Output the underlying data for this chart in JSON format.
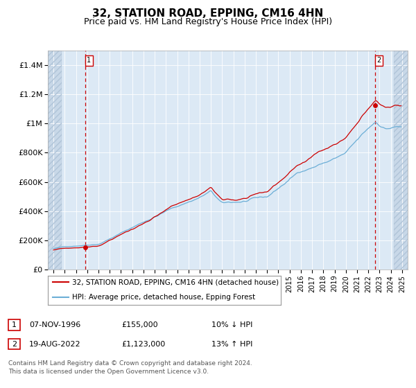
{
  "title": "32, STATION ROAD, EPPING, CM16 4HN",
  "subtitle": "Price paid vs. HM Land Registry's House Price Index (HPI)",
  "ylim": [
    0,
    1500000
  ],
  "yticks": [
    0,
    200000,
    400000,
    600000,
    800000,
    1000000,
    1200000,
    1400000
  ],
  "ytick_labels": [
    "£0",
    "£200K",
    "£400K",
    "£600K",
    "£800K",
    "£1M",
    "£1.2M",
    "£1.4M"
  ],
  "xlim_start": 1993.5,
  "xlim_end": 2025.5,
  "hatch_left_end": 1994.75,
  "hatch_right_start": 2024.25,
  "sale1_date": 1996.85,
  "sale1_price": 155000,
  "sale2_date": 2022.63,
  "sale2_price": 1123000,
  "legend_line1": "32, STATION ROAD, EPPING, CM16 4HN (detached house)",
  "legend_line2": "HPI: Average price, detached house, Epping Forest",
  "table_row1_date": "07-NOV-1996",
  "table_row1_price": "£155,000",
  "table_row1_hpi": "10% ↓ HPI",
  "table_row2_date": "19-AUG-2022",
  "table_row2_price": "£1,123,000",
  "table_row2_hpi": "13% ↑ HPI",
  "footnote": "Contains HM Land Registry data © Crown copyright and database right 2024.\nThis data is licensed under the Open Government Licence v3.0.",
  "hpi_color": "#6baed6",
  "sale_color": "#cc0000",
  "background_plot": "#dce9f5",
  "background_hatch": "#c8d8e8",
  "grid_color": "#ffffff",
  "title_fontsize": 11,
  "subtitle_fontsize": 9
}
